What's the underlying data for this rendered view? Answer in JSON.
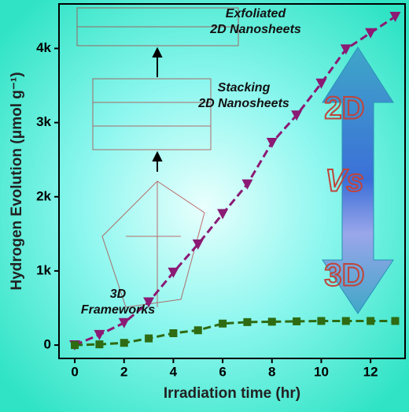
{
  "chart_data": {
    "type": "line",
    "x_label": "Irradiation time (hr)",
    "y_label": "Hydrogen Evolution (μmol g⁻¹)",
    "x": [
      0,
      1,
      2,
      3,
      4,
      5,
      6,
      7,
      8,
      9,
      10,
      11,
      12,
      13
    ],
    "series": [
      {
        "color": "#8b1a74",
        "marker": "triangle-down",
        "values": [
          0,
          140,
          300,
          580,
          980,
          1360,
          1770,
          2170,
          2730,
          3100,
          3530,
          3990,
          4210,
          4430
        ]
      },
      {
        "color": "#2e6b12",
        "marker": "square",
        "values": [
          0,
          10,
          30,
          90,
          160,
          200,
          290,
          310,
          315,
          320,
          325,
          325,
          325,
          325
        ]
      }
    ],
    "xlim": [
      -0.64,
      13.4
    ],
    "ylim": [
      -180,
      4600
    ],
    "xticks": [
      0,
      2,
      4,
      6,
      8,
      10,
      12
    ],
    "yticks": [
      0,
      {
        "value": 1000,
        "label": "1k"
      },
      {
        "value": 2000,
        "label": "2k"
      },
      {
        "value": 3000,
        "label": "3k"
      },
      {
        "value": 4000,
        "label": "4k"
      }
    ],
    "annotations": [
      {
        "lines": [
          "Exfoliated",
          "2D Nanosheets"
        ]
      },
      {
        "lines": [
          "Stacking",
          "2D Nanosheets"
        ]
      },
      {
        "lines": [
          "3D",
          "Frameworks"
        ]
      },
      {
        "lines": [
          "2D"
        ]
      },
      {
        "lines": [
          "Vs"
        ]
      },
      {
        "lines": [
          "3D"
        ]
      }
    ]
  }
}
